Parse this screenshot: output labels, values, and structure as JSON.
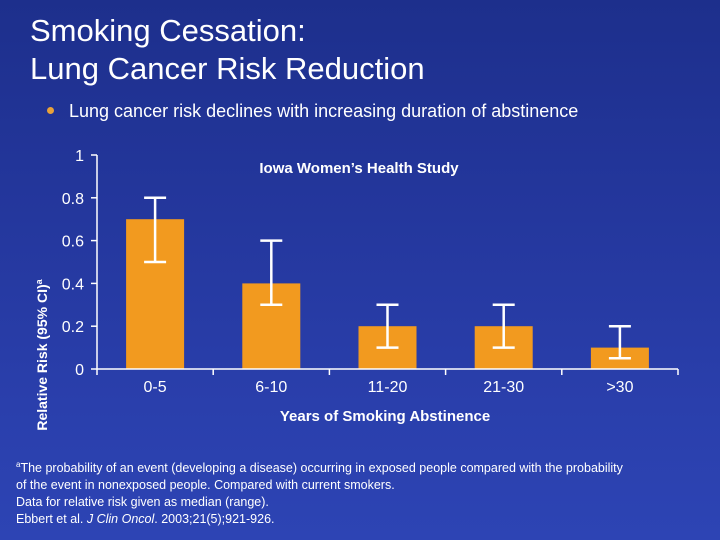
{
  "slide": {
    "title_line1": "Smoking Cessation:",
    "title_line2": "Lung Cancer Risk Reduction",
    "bullet": "Lung cancer risk declines with increasing duration of abstinence"
  },
  "chart_data": {
    "type": "bar",
    "title": "Iowa Women’s Health Study",
    "xlabel": "Years of Smoking Abstinence",
    "ylabel": "Relative Risk (95% CI)",
    "ylabel_sup": "a",
    "categories": [
      "0-5",
      "6-10",
      "11-20",
      "21-30",
      ">30"
    ],
    "values": [
      0.7,
      0.4,
      0.2,
      0.2,
      0.1
    ],
    "ci_low": [
      0.5,
      0.3,
      0.1,
      0.1,
      0.05
    ],
    "ci_high": [
      0.8,
      0.6,
      0.3,
      0.3,
      0.2
    ],
    "yticks": [
      "0",
      "0.2",
      "0.4",
      "0.6",
      "0.8",
      "1"
    ],
    "ylim": [
      0,
      1
    ],
    "grid": false,
    "colors": {
      "bar": "#f29a1f",
      "error_bar": "#ffffff",
      "axis": "#ffffff"
    }
  },
  "footnote": {
    "sup": "a",
    "line1": "The probability of an event (developing a disease) occurring in exposed people compared with the probability",
    "line2": "of the event in nonexposed people. Compared with current smokers.",
    "line3": "Data for relative risk given as median (range).",
    "ref_authors": "Ebbert et al. ",
    "ref_journal": "J Clin Oncol",
    "ref_rest": ". 2003;21(5);921-926."
  },
  "theme": {
    "background": "#24379d",
    "bullet_color": "#e8a23a"
  }
}
